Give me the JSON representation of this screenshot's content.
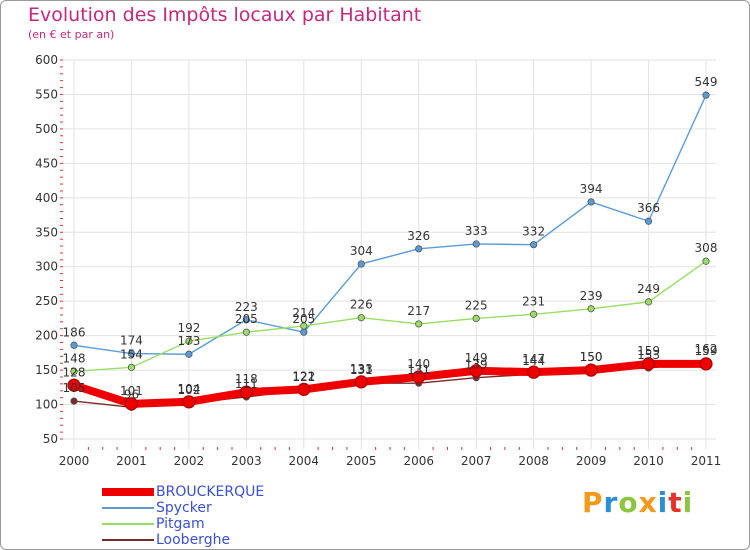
{
  "chart_data": {
    "type": "line",
    "title": "Evolution des Impôts locaux par Habitant",
    "subtitle": "(en € et par an)",
    "xlabel": "",
    "ylabel": "",
    "ylim": [
      50,
      600
    ],
    "yticks": [
      "50",
      "100",
      "150",
      "200",
      "250",
      "300",
      "350",
      "400",
      "450",
      "500",
      "550",
      "600"
    ],
    "categories": [
      "2000",
      "2001",
      "2002",
      "2003",
      "2004",
      "2005",
      "2006",
      "2007",
      "2008",
      "2009",
      "2010",
      "2011"
    ],
    "series": [
      {
        "name": "BROUCKERQUE",
        "color": "#ee0000",
        "values": [
          128,
          101,
          104,
          118,
          122,
          133,
          140,
          149,
          147,
          150,
          159,
          159
        ],
        "labels": [
          "128",
          "101",
          "104",
          "118",
          "122",
          "133",
          "140",
          "149",
          "147",
          "150",
          "159",
          "159"
        ]
      },
      {
        "name": "Spycker",
        "color": "#5b9bd5",
        "values": [
          186,
          174,
          173,
          223,
          205,
          304,
          326,
          333,
          332,
          394,
          366,
          549
        ],
        "labels": [
          "186",
          "174",
          "173",
          "223",
          "205",
          "304",
          "326",
          "333",
          "332",
          "394",
          "366",
          "549"
        ]
      },
      {
        "name": "Pitgam",
        "color": "#99dd66",
        "values": [
          148,
          154,
          192,
          205,
          214,
          226,
          217,
          225,
          231,
          239,
          249,
          308
        ],
        "labels": [
          "148",
          "154",
          "192",
          "205",
          "214",
          "226",
          "217",
          "225",
          "231",
          "239",
          "249",
          "308"
        ]
      },
      {
        "name": "Looberghe",
        "color": "#7a2a2a",
        "values": [
          105,
          96,
          102,
          111,
          121,
          131,
          131,
          139,
          144,
          150,
          153,
          162
        ],
        "labels": [
          "105",
          "96",
          "102",
          "111",
          "121",
          "131",
          "131",
          "139",
          "144",
          "150",
          "153",
          "162"
        ]
      }
    ]
  },
  "logo": {
    "letters": [
      "P",
      "r",
      "o",
      "x",
      "i",
      "t",
      "i"
    ],
    "colors": [
      "#f39a1e",
      "#2b8fd8",
      "#8cc63f",
      "#f39a1e",
      "#2b8fd8",
      "#e8332a",
      "#8cc63f"
    ]
  }
}
